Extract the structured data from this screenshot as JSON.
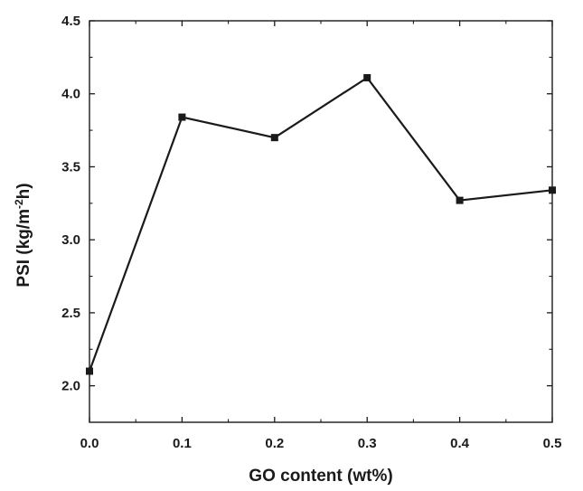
{
  "chart_data": {
    "type": "line",
    "x": [
      0.0,
      0.1,
      0.2,
      0.3,
      0.4,
      0.5
    ],
    "series": [
      {
        "values": [
          2.1,
          3.84,
          3.7,
          4.11,
          3.27,
          3.34
        ]
      }
    ],
    "xlabel": "GO content (wt%)",
    "ylabel": {
      "prefix": "PSI (kg/m",
      "superscript": "-2",
      "suffix": "h)"
    },
    "xlim": [
      0.0,
      0.5
    ],
    "ylim": [
      1.75,
      4.5
    ],
    "xticks": [
      "0.0",
      "0.1",
      "0.2",
      "0.3",
      "0.4",
      "0.5"
    ],
    "yticks": [
      "2.0",
      "2.5",
      "3.0",
      "3.5",
      "4.0",
      "4.5"
    ],
    "grid": false,
    "marker": "square",
    "line_color": "#1a1a1a"
  }
}
